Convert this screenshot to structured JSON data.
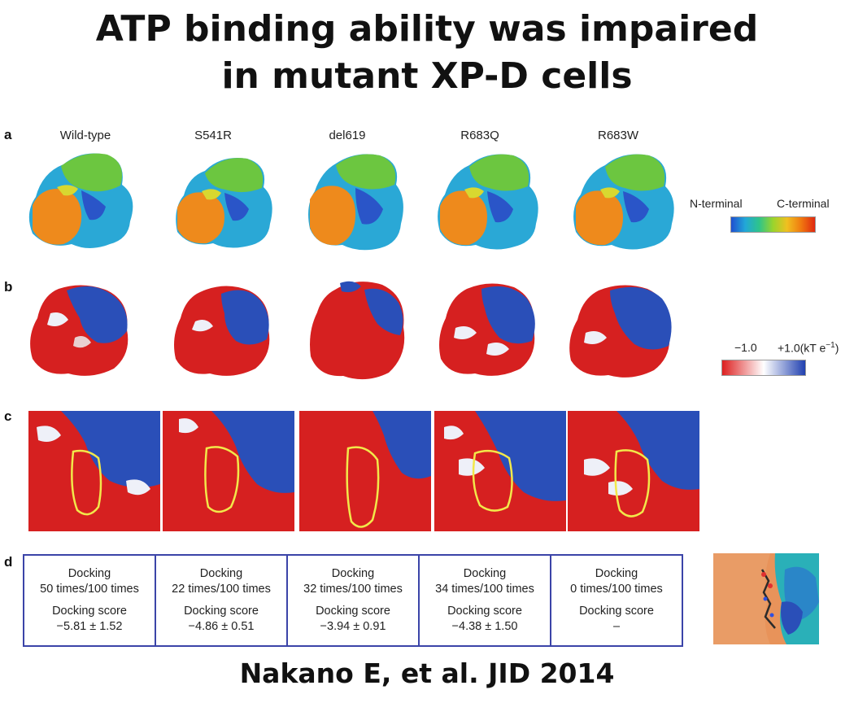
{
  "title": {
    "line1": "ATP binding ability was impaired",
    "line2": "in mutant XP-D cells"
  },
  "panels": {
    "a": "a",
    "b": "b",
    "c": "c",
    "d": "d"
  },
  "columns": [
    "Wild-type",
    "S541R",
    "del619",
    "R683Q",
    "R683W"
  ],
  "legend_a": {
    "left": "N-terminal",
    "right": "C-terminal",
    "gradient_colors": [
      "#1f4fd0",
      "#22a7d8",
      "#2ec48a",
      "#9ad42c",
      "#f0c020",
      "#f07a10",
      "#e02810"
    ]
  },
  "legend_b": {
    "left": "−1.0",
    "right": "+1.0(kT e",
    "right_sup": "−1",
    "right_close": ")",
    "gradient_colors": [
      "#dd2020",
      "#ffffff",
      "#2040b0"
    ]
  },
  "colors": {
    "acid": "#d62020",
    "base": "#2a4fb8",
    "highlight": "#f2e84a",
    "table_border": "#3b44a8"
  },
  "docking": [
    {
      "label": "Docking",
      "times": "50 times/100 times",
      "score_label": "Docking score",
      "score": "−5.81 ± 1.52"
    },
    {
      "label": "Docking",
      "times": "22 times/100 times",
      "score_label": "Docking score",
      "score": "−4.86 ± 0.51"
    },
    {
      "label": "Docking",
      "times": "32 times/100 times",
      "score_label": "Docking score",
      "score": "−3.94 ± 0.91"
    },
    {
      "label": "Docking",
      "times": "34 times/100 times",
      "score_label": "Docking score",
      "score": "−4.38 ± 1.50"
    },
    {
      "label": "Docking",
      "times": "0 times/100 times",
      "score_label": "Docking score",
      "score": "–"
    }
  ],
  "footer": "Nakano E, et al. JID 2014"
}
